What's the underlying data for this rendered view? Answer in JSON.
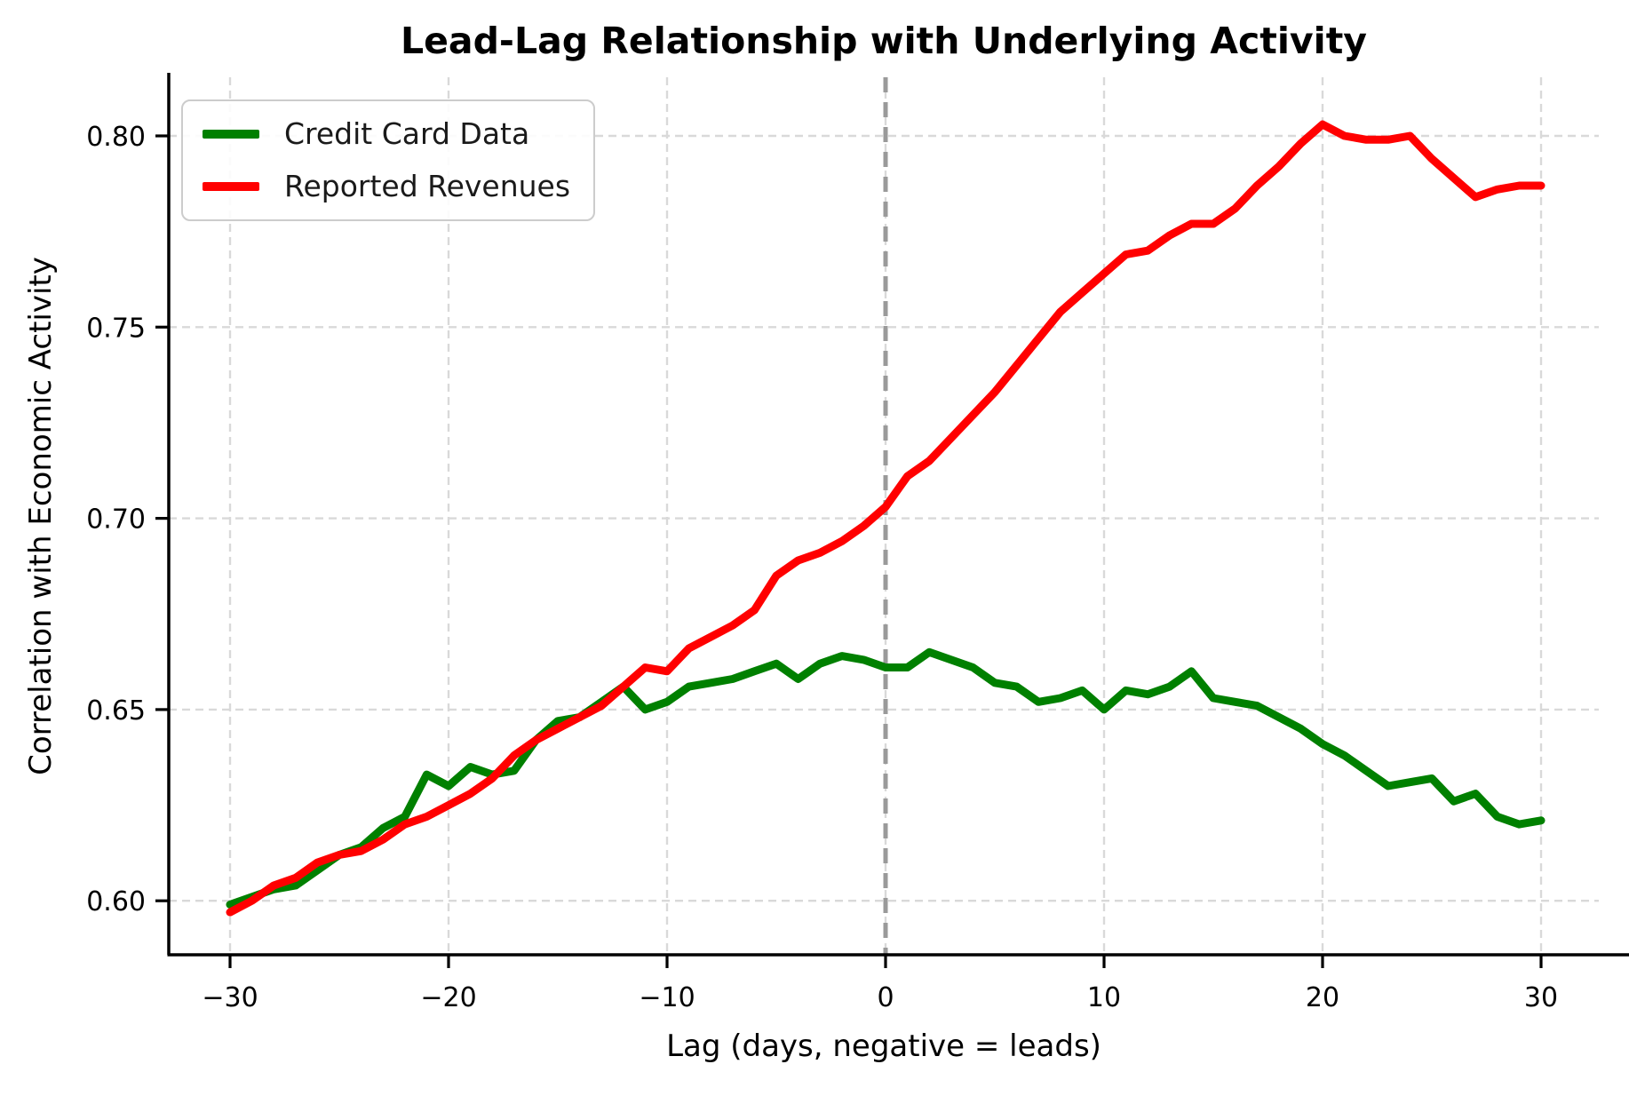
{
  "title": "Lead-Lag Relationship with Underlying Activity",
  "xlabel": "Lag (days, negative = leads)",
  "ylabel": "Correlation with Economic Activity",
  "legend": {
    "position": "upper left",
    "items": [
      {
        "label": "Credit Card Data",
        "color": "#008000"
      },
      {
        "label": "Reported Revenues",
        "color": "#ff0000"
      }
    ]
  },
  "colors": {
    "credit_card": "#008000",
    "reported_revenues": "#ff0000",
    "zero_line": "#9a9a9a",
    "gridline": "#d9d9d9",
    "spine": "#000000",
    "text": "#000000"
  },
  "chart_data": {
    "type": "line",
    "title": "Lead-Lag Relationship with Underlying Activity",
    "xlabel": "Lag (days, negative = leads)",
    "ylabel": "Correlation with Economic Activity",
    "grid": true,
    "legend_position": "upper left",
    "xlim": [
      -33,
      33
    ],
    "ylim": [
      0.586,
      0.815
    ],
    "x_ticks": {
      "values": [
        -30,
        -20,
        -10,
        0,
        10,
        20,
        30
      ],
      "labels": [
        "−30",
        "−20",
        "−10",
        "0",
        "10",
        "20",
        "30"
      ]
    },
    "y_ticks": {
      "values": [
        0.6,
        0.65,
        0.7,
        0.75,
        0.8
      ],
      "labels": [
        "0.60",
        "0.65",
        "0.70",
        "0.75",
        "0.80"
      ]
    },
    "vline": {
      "x": 0,
      "style": "dashed",
      "color": "#9a9a9a"
    },
    "x": [
      -30,
      -29,
      -28,
      -27,
      -26,
      -25,
      -24,
      -23,
      -22,
      -21,
      -20,
      -19,
      -18,
      -17,
      -16,
      -15,
      -14,
      -13,
      -12,
      -11,
      -10,
      -9,
      -8,
      -7,
      -6,
      -5,
      -4,
      -3,
      -2,
      -1,
      0,
      1,
      2,
      3,
      4,
      5,
      6,
      7,
      8,
      9,
      10,
      11,
      12,
      13,
      14,
      15,
      16,
      17,
      18,
      19,
      20,
      21,
      22,
      23,
      24,
      25,
      26,
      27,
      28,
      29,
      30
    ],
    "series": [
      {
        "name": "Credit Card Data",
        "color": "#008000",
        "values": [
          0.599,
          0.601,
          0.603,
          0.604,
          0.608,
          0.612,
          0.614,
          0.619,
          0.622,
          0.633,
          0.63,
          0.635,
          0.633,
          0.634,
          0.642,
          0.647,
          0.648,
          0.652,
          0.656,
          0.65,
          0.652,
          0.656,
          0.657,
          0.658,
          0.66,
          0.662,
          0.658,
          0.662,
          0.664,
          0.663,
          0.661,
          0.661,
          0.665,
          0.663,
          0.661,
          0.657,
          0.656,
          0.652,
          0.653,
          0.655,
          0.65,
          0.655,
          0.654,
          0.656,
          0.66,
          0.653,
          0.652,
          0.651,
          0.648,
          0.645,
          0.641,
          0.638,
          0.634,
          0.63,
          0.631,
          0.632,
          0.626,
          0.628,
          0.622,
          0.62,
          0.621
        ]
      },
      {
        "name": "Reported Revenues",
        "color": "#ff0000",
        "values": [
          0.597,
          0.6,
          0.604,
          0.606,
          0.61,
          0.612,
          0.613,
          0.616,
          0.62,
          0.622,
          0.625,
          0.628,
          0.632,
          0.638,
          0.642,
          0.645,
          0.648,
          0.651,
          0.656,
          0.661,
          0.66,
          0.666,
          0.669,
          0.672,
          0.676,
          0.685,
          0.689,
          0.691,
          0.694,
          0.698,
          0.703,
          0.711,
          0.715,
          0.721,
          0.727,
          0.733,
          0.74,
          0.747,
          0.754,
          0.759,
          0.764,
          0.769,
          0.77,
          0.774,
          0.777,
          0.777,
          0.781,
          0.787,
          0.792,
          0.798,
          0.803,
          0.8,
          0.799,
          0.799,
          0.8,
          0.794,
          0.789,
          0.784,
          0.786,
          0.787,
          0.787
        ]
      }
    ]
  }
}
